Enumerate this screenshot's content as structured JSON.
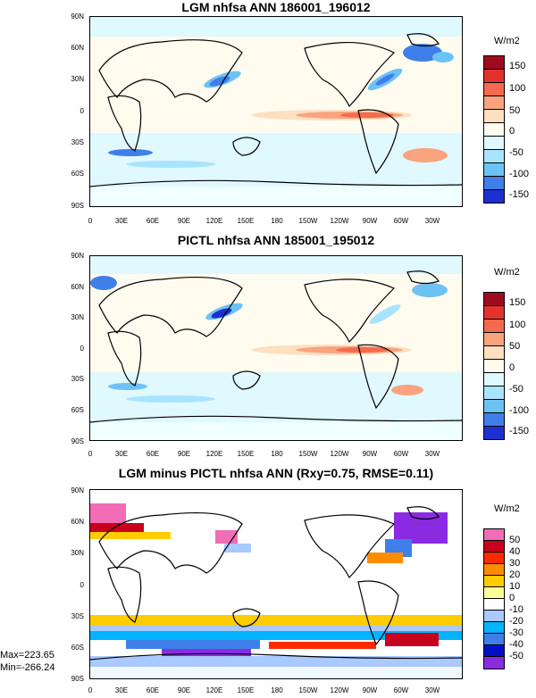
{
  "panels": [
    {
      "title": "LGM nhfsa ANN 186001_196012",
      "units": "W/m2",
      "colorbar": {
        "labels": [
          "150",
          "100",
          "50",
          "0",
          "-50",
          "-100",
          "-150"
        ],
        "colors": [
          "#9e0b1f",
          "#e3322e",
          "#f36a4f",
          "#f9a37f",
          "#fde0c0",
          "#fffbef",
          "#e0f8ff",
          "#a9e4ff",
          "#6dc2f5",
          "#3f7fe9",
          "#1c2fd1"
        ]
      }
    },
    {
      "title": "PICTL nhfsa ANN 185001_195012",
      "units": "W/m2",
      "colorbar": {
        "labels": [
          "150",
          "100",
          "50",
          "0",
          "-50",
          "-100",
          "-150"
        ],
        "colors": [
          "#9e0b1f",
          "#e3322e",
          "#f36a4f",
          "#f9a37f",
          "#fde0c0",
          "#fffbef",
          "#e0f8ff",
          "#a9e4ff",
          "#6dc2f5",
          "#3f7fe9",
          "#1c2fd1"
        ]
      }
    },
    {
      "title": "LGM minus PICTL nhfsa ANN (Rxy=0.75, RMSE=0.11)",
      "units": "W/m2",
      "colorbar": {
        "labels": [
          "50",
          "40",
          "30",
          "20",
          "10",
          "0",
          "-10",
          "-20",
          "-30",
          "-40",
          "-50"
        ],
        "colors": [
          "#f26cb6",
          "#c8001e",
          "#ff2a00",
          "#ff8c00",
          "#ffcc00",
          "#ffff9a",
          "#ffffff",
          "#a9c9ff",
          "#00b4ff",
          "#3f7fe9",
          "#0010c8",
          "#8a2be2"
        ]
      }
    }
  ],
  "lat_labels": [
    "90N",
    "60N",
    "30N",
    "0",
    "30S",
    "60S",
    "90S"
  ],
  "lon_labels": [
    "0",
    "30E",
    "60E",
    "90E",
    "120E",
    "150E",
    "180",
    "150W",
    "120W",
    "90W",
    "60W",
    "30W"
  ],
  "stats": {
    "max": "Max=223.65",
    "min": "Min=-266.24"
  }
}
